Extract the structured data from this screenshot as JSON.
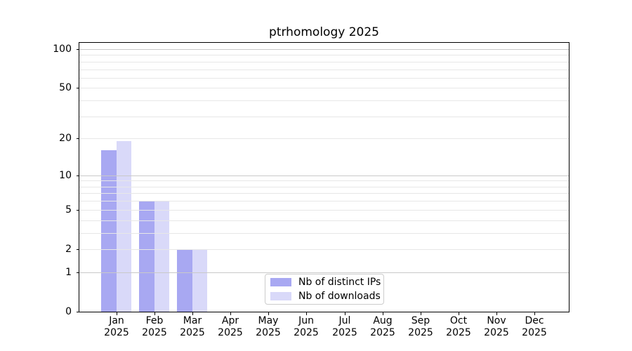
{
  "chart_data": {
    "type": "bar",
    "title": "ptrhomology 2025",
    "year": "2025",
    "months": [
      "Jan",
      "Feb",
      "Mar",
      "Apr",
      "May",
      "Jun",
      "Jul",
      "Aug",
      "Sep",
      "Oct",
      "Nov",
      "Dec"
    ],
    "series": [
      {
        "name": "Nb of distinct IPs",
        "color": "#a8a8f2",
        "values": [
          16,
          6,
          2,
          0,
          0,
          0,
          0,
          0,
          0,
          0,
          0,
          0
        ]
      },
      {
        "name": "Nb of downloads",
        "color": "#d9d9f9",
        "values": [
          19,
          6,
          2,
          0,
          0,
          0,
          0,
          0,
          0,
          0,
          0,
          0
        ]
      }
    ],
    "xlabel": "",
    "ylabel": "",
    "y_scale": "log1p",
    "ylim": [
      0,
      112
    ],
    "y_ticks": [
      0,
      1,
      2,
      5,
      10,
      20,
      50,
      100
    ],
    "major_gridlines": [
      1,
      10,
      100
    ],
    "minor_gridlines": [
      2,
      3,
      4,
      5,
      6,
      7,
      8,
      9,
      20,
      30,
      40,
      50,
      60,
      70,
      80,
      90
    ],
    "grid": true,
    "legend_position": "lower center",
    "colors": {
      "grid_major": "#c9c9c9",
      "grid_minor": "#e7e7e7",
      "spine": "#000000",
      "background": "#ffffff"
    }
  }
}
